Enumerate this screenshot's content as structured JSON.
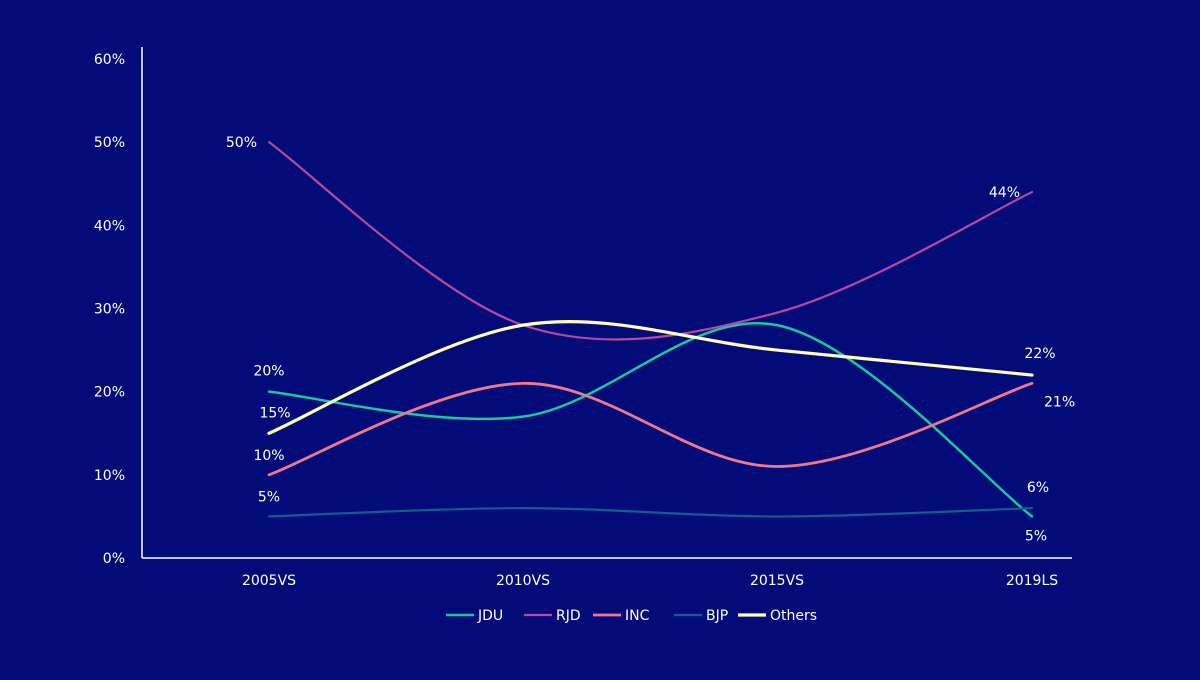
{
  "chart_data": {
    "type": "line",
    "categories": [
      "2005VS",
      "2010VS",
      "2015VS",
      "2019LS"
    ],
    "y_ticks": [
      "0%",
      "10%",
      "20%",
      "30%",
      "40%",
      "50%",
      "60%"
    ],
    "ylim": [
      0,
      60
    ],
    "grid": false,
    "legend_position": "bottom",
    "series": [
      {
        "name": "JDU",
        "color": "#19c7a0",
        "values": [
          20,
          17,
          28,
          5
        ],
        "labels": [
          "20%",
          "",
          "",
          "5%"
        ]
      },
      {
        "name": "RJD",
        "color": "#b8489f",
        "values": [
          50,
          28,
          29.5,
          44
        ],
        "labels": [
          "50%",
          "",
          "",
          "44%"
        ]
      },
      {
        "name": "INC",
        "color": "#f0788e",
        "values": [
          10,
          21,
          11,
          21
        ],
        "labels": [
          "10%",
          "",
          "",
          "21%"
        ]
      },
      {
        "name": "BJP",
        "color": "#145b92",
        "values": [
          5,
          6,
          5,
          6
        ],
        "labels": [
          "5%",
          "",
          "",
          "6%"
        ]
      },
      {
        "name": "Others",
        "color": "#fffeb8",
        "values": [
          15,
          28,
          25,
          22
        ],
        "labels": [
          "15%",
          "",
          "",
          "22%"
        ]
      }
    ]
  }
}
